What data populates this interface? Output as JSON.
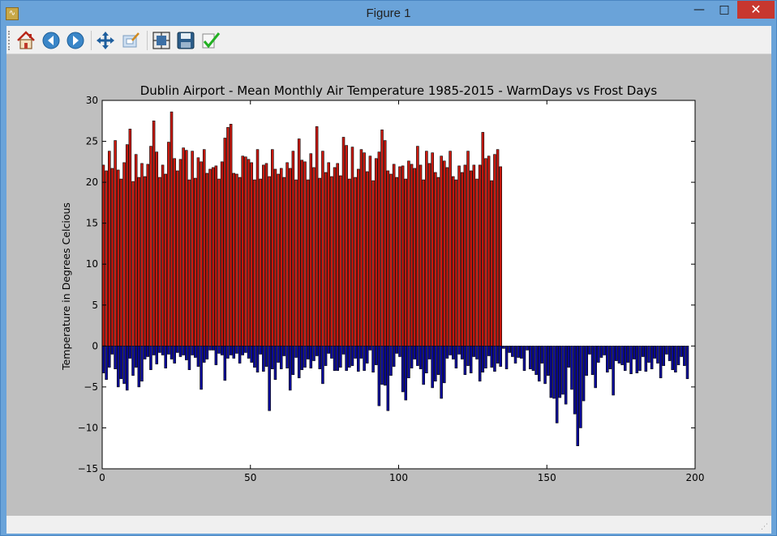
{
  "window": {
    "title": "Figure 1",
    "app_icon": "matplotlib-icon",
    "controls": {
      "minimize": "—",
      "maximize": "□",
      "close": "✕"
    }
  },
  "toolbar": {
    "buttons": [
      {
        "name": "home-icon",
        "tooltip": "Home"
      },
      {
        "name": "back-icon",
        "tooltip": "Back"
      },
      {
        "name": "forward-icon",
        "tooltip": "Forward"
      },
      {
        "name": "pan-icon",
        "tooltip": "Pan"
      },
      {
        "name": "zoom-icon",
        "tooltip": "Zoom"
      },
      {
        "name": "subplots-icon",
        "tooltip": "Subplots"
      },
      {
        "name": "save-icon",
        "tooltip": "Save"
      },
      {
        "name": "edit-check-icon",
        "tooltip": "Edit"
      }
    ]
  },
  "colors": {
    "warm": "#cc1a10",
    "frost": "#0a0a9a",
    "edge": "#000000",
    "figure_bg": "#bfbfbf"
  },
  "chart_data": {
    "type": "bar",
    "title": "Dublin Airport - Mean Monthly Air Temperature 1985-2015 - WarmDays vs Frost Days",
    "xlabel": "",
    "ylabel": "Temperature in Degrees Celcious",
    "xlim": [
      0,
      200
    ],
    "ylim": [
      -15,
      30
    ],
    "xticks": [
      "0",
      "50",
      "100",
      "150",
      "200"
    ],
    "yticks": [
      "−15",
      "−10",
      "−5",
      "0",
      "5",
      "10",
      "15",
      "20",
      "25",
      "30"
    ],
    "grid": false,
    "series": [
      {
        "color": "#cc1a10",
        "values": [
          22.1,
          21.4,
          23.8,
          21.7,
          25.1,
          21.5,
          20.4,
          22.4,
          24.6,
          26.5,
          20.1,
          23.4,
          20.6,
          22.3,
          20.7,
          22.2,
          24.4,
          27.5,
          23.7,
          20.6,
          22.1,
          21.0,
          24.9,
          28.6,
          22.9,
          21.4,
          22.8,
          24.2,
          23.9,
          20.3,
          23.8,
          20.5,
          23.0,
          22.5,
          24.0,
          21.1,
          21.6,
          21.8,
          22.0,
          20.4,
          22.5,
          25.4,
          26.7,
          27.1,
          21.1,
          21.0,
          20.6,
          23.2,
          23.1,
          22.8,
          22.4,
          20.3,
          24.0,
          20.4,
          22.1,
          22.3,
          20.7,
          24.0,
          21.6,
          21.0,
          21.7,
          20.6,
          22.4,
          21.7,
          23.8,
          20.3,
          25.3,
          22.7,
          22.5,
          20.3,
          23.5,
          21.8,
          26.8,
          20.5,
          23.8,
          21.2,
          22.4,
          20.7,
          21.8,
          22.3,
          20.8,
          25.5,
          24.5,
          20.4,
          24.3,
          20.6,
          21.6,
          24.0,
          23.6,
          21.3,
          23.2,
          20.2,
          22.9,
          23.7,
          26.4,
          25.1,
          21.4,
          21.0,
          22.2,
          20.6,
          21.9,
          22.0,
          20.4,
          22.6,
          22.2,
          21.7,
          24.4,
          22.1,
          20.3,
          23.8,
          22.3,
          23.6,
          21.2,
          20.6,
          23.2,
          22.6,
          21.8,
          23.8,
          20.7,
          20.3,
          22.0,
          21.2,
          22.1,
          23.8,
          21.4,
          22.1,
          20.4,
          22.1,
          26.1,
          22.9,
          23.2,
          20.2,
          23.4,
          24.0,
          21.9
        ]
      },
      {
        "color": "#0a0a9a",
        "values": [
          -3.3,
          -4.1,
          -2.6,
          -1.0,
          -2.8,
          -5.0,
          -4.0,
          -4.6,
          -5.4,
          -1.5,
          -3.6,
          -2.6,
          -5.0,
          -4.3,
          -1.6,
          -1.3,
          -2.9,
          -1.1,
          -2.2,
          -0.8,
          -1.1,
          -2.7,
          -1.0,
          -1.6,
          -2.1,
          -0.8,
          -1.3,
          -1.1,
          -1.7,
          -2.9,
          -1.1,
          -1.4,
          -2.5,
          -5.3,
          -2.0,
          -1.6,
          -0.5,
          -0.5,
          -2.3,
          -0.9,
          -1.1,
          -4.2,
          -1.5,
          -1.1,
          -1.5,
          -0.9,
          -2.1,
          -1.1,
          -0.8,
          -1.5,
          -2.0,
          -2.6,
          -3.2,
          -1.0,
          -3.1,
          -2.5,
          -7.9,
          -2.8,
          -4.1,
          -2.0,
          -2.8,
          -1.2,
          -2.7,
          -5.4,
          -3.5,
          -1.4,
          -3.9,
          -2.9,
          -2.6,
          -1.6,
          -2.7,
          -1.8,
          -1.2,
          -2.8,
          -4.6,
          -2.4,
          -0.9,
          -1.5,
          -3.0,
          -3.0,
          -2.6,
          -1.0,
          -3.0,
          -2.6,
          -2.4,
          -1.5,
          -3.1,
          -1.5,
          -3.0,
          -2.1,
          -0.5,
          -3.2,
          -2.3,
          -7.3,
          -4.7,
          -4.8,
          -7.9,
          -3.6,
          -2.5,
          -0.9,
          -1.3,
          -5.6,
          -6.6,
          -3.9,
          -2.7,
          -1.6,
          -2.4,
          -2.8,
          -4.7,
          -3.3,
          -1.6,
          -5.1,
          -4.3,
          -3.5,
          -6.4,
          -4.5,
          -1.5,
          -1.1,
          -1.6,
          -2.7,
          -1.0,
          -1.6,
          -3.5,
          -2.4,
          -3.3,
          -1.3,
          -1.6,
          -4.3,
          -3.2,
          -2.7,
          -1.2,
          -2.6,
          -3.1,
          -2.1,
          -2.5,
          -0.3,
          -2.8,
          -0.8,
          -1.3,
          -2.1,
          -1.4,
          -1.5,
          -3.0,
          -0.5,
          -2.8,
          -3.0,
          -3.5,
          -4.3,
          -2.1,
          -4.6,
          -3.6,
          -6.3,
          -6.4,
          -9.4,
          -6.3,
          -5.9,
          -7.1,
          -2.6,
          -5.3,
          -8.3,
          -12.2,
          -10.0,
          -6.7,
          -3.6,
          -1.0,
          -3.5,
          -5.1,
          -2.0,
          -1.4,
          -1.1,
          -3.2,
          -2.8,
          -6.0,
          -1.8,
          -2.1,
          -2.3,
          -3.0,
          -2.0,
          -3.4,
          -1.6,
          -3.3,
          -3.0,
          -1.3,
          -3.1,
          -2.0,
          -2.8,
          -1.5,
          -2.1,
          -3.9,
          -2.4,
          -1.0,
          -1.8,
          -2.9,
          -3.2,
          -2.3,
          -1.3,
          -2.4,
          -4.0
        ]
      }
    ]
  }
}
